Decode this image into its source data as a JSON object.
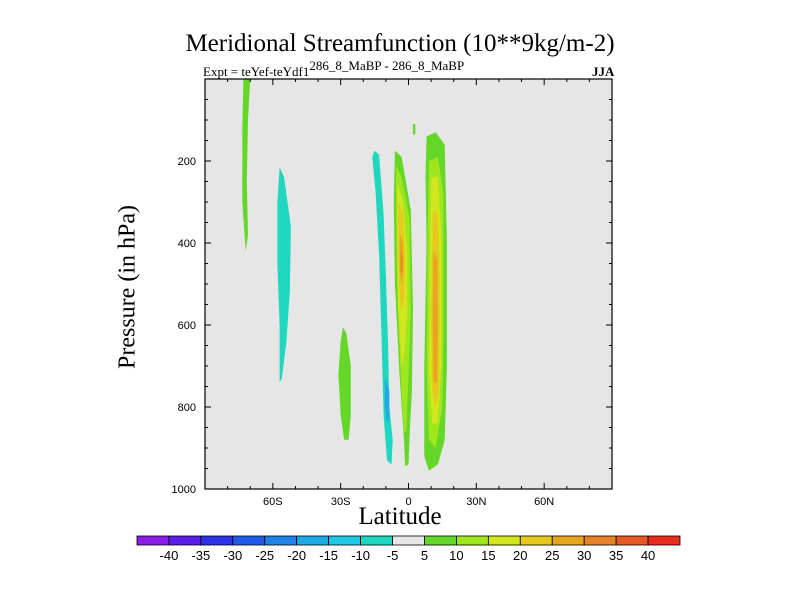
{
  "chart_data": {
    "type": "contour",
    "title": "Meridional Streamfunction (10**9kg/m-2)",
    "left_label": "Expt = teYef-teYdf1",
    "left_label_sup": "286_8_MaBP - 286_8_MaBP",
    "right_label": "JJA",
    "xlabel": "Latitude",
    "ylabel": "Pressure (in hPa)",
    "xlim": [
      -90,
      90
    ],
    "ylim": [
      0,
      1000
    ],
    "y_inverted": true,
    "background_color": "#e6e6e6",
    "x_ticks": [
      {
        "value": -60,
        "label": "60S"
      },
      {
        "value": -30,
        "label": "30S"
      },
      {
        "value": 0,
        "label": "0"
      },
      {
        "value": 30,
        "label": "30N"
      },
      {
        "value": 60,
        "label": "60N"
      }
    ],
    "y_ticks": [
      {
        "value": 200,
        "label": "200"
      },
      {
        "value": 400,
        "label": "400"
      },
      {
        "value": 600,
        "label": "600"
      },
      {
        "value": 800,
        "label": "800"
      },
      {
        "value": 1000,
        "label": "1000"
      }
    ],
    "colorbar": {
      "labels": [
        "-40",
        "-35",
        "-30",
        "-25",
        "-20",
        "-15",
        "-10",
        "-5",
        "5",
        "10",
        "15",
        "20",
        "25",
        "30",
        "35",
        "40"
      ],
      "colors": [
        "#8a1ee6",
        "#5a1ee6",
        "#2d32e6",
        "#1e5ae6",
        "#1e82e6",
        "#1eaae6",
        "#1ec8e6",
        "#1ed7be",
        "#e6e6e6",
        "#64d728",
        "#a0e61e",
        "#d2e61e",
        "#e6c81e",
        "#e6a51e",
        "#e68228",
        "#e65a23",
        "#e62d1e"
      ]
    },
    "regions": [
      {
        "name": "green-strip-70s",
        "color": "#64d728",
        "points": [
          [
            -73,
            0
          ],
          [
            -70,
            0
          ],
          [
            -71,
            100
          ],
          [
            -71.5,
            250
          ],
          [
            -71,
            380
          ],
          [
            -72,
            420
          ],
          [
            -73.5,
            300
          ],
          [
            -73.5,
            120
          ]
        ]
      },
      {
        "name": "cyan-band-55s",
        "color": "#1ed7be",
        "points": [
          [
            -57,
            215
          ],
          [
            -55,
            240
          ],
          [
            -52,
            360
          ],
          [
            -52.5,
            520
          ],
          [
            -54,
            640
          ],
          [
            -56,
            730
          ],
          [
            -57,
            740
          ],
          [
            -57,
            600
          ],
          [
            -58,
            450
          ],
          [
            -58,
            300
          ]
        ]
      },
      {
        "name": "green-blob-30s",
        "color": "#64d728",
        "points": [
          [
            -29,
            605
          ],
          [
            -27.5,
            620
          ],
          [
            -25.5,
            700
          ],
          [
            -25.5,
            820
          ],
          [
            -26.5,
            880
          ],
          [
            -28.5,
            880
          ],
          [
            -30,
            820
          ],
          [
            -31,
            720
          ],
          [
            -30,
            640
          ]
        ]
      },
      {
        "name": "cyan-band-15s",
        "color": "#1ed7be",
        "points": [
          [
            -15,
            175
          ],
          [
            -13,
            185
          ],
          [
            -11,
            330
          ],
          [
            -10,
            480
          ],
          [
            -9,
            650
          ],
          [
            -8.5,
            800
          ],
          [
            -7,
            880
          ],
          [
            -7.5,
            940
          ],
          [
            -9.5,
            930
          ],
          [
            -11,
            820
          ],
          [
            -12,
            620
          ],
          [
            -13,
            430
          ],
          [
            -14.5,
            280
          ],
          [
            -16,
            190
          ]
        ]
      },
      {
        "name": "blue-core-10s",
        "color": "#1eaae6",
        "points": [
          [
            -10.5,
            730
          ],
          [
            -8.5,
            760
          ],
          [
            -8.5,
            830
          ],
          [
            -9.5,
            840
          ],
          [
            -10.5,
            800
          ]
        ]
      },
      {
        "name": "green-band-0",
        "color": "#64d728",
        "points": [
          [
            -6,
            175
          ],
          [
            -3,
            190
          ],
          [
            1,
            320
          ],
          [
            2,
            560
          ],
          [
            1.5,
            760
          ],
          [
            0.5,
            870
          ],
          [
            0,
            940
          ],
          [
            -1.5,
            945
          ],
          [
            -2,
            880
          ],
          [
            -4,
            720
          ],
          [
            -6,
            500
          ],
          [
            -6.5,
            300
          ]
        ]
      },
      {
        "name": "lime-band-0",
        "color": "#a0e61e",
        "points": [
          [
            -5.5,
            210
          ],
          [
            -3,
            240
          ],
          [
            0.5,
            340
          ],
          [
            1,
            560
          ],
          [
            0,
            720
          ],
          [
            -1,
            860
          ],
          [
            -2,
            860
          ],
          [
            -3.5,
            720
          ],
          [
            -5,
            520
          ],
          [
            -5.5,
            330
          ]
        ]
      },
      {
        "name": "yellow-band-0",
        "color": "#d2e61e",
        "points": [
          [
            -5,
            250
          ],
          [
            -2.5,
            300
          ],
          [
            -0.5,
            420
          ],
          [
            -0.5,
            560
          ],
          [
            -2,
            680
          ],
          [
            -3,
            700
          ],
          [
            -4.5,
            560
          ],
          [
            -5,
            400
          ]
        ]
      },
      {
        "name": "gold-band-0",
        "color": "#e6c81e",
        "points": [
          [
            -4.5,
            300
          ],
          [
            -2.5,
            330
          ],
          [
            -1.5,
            430
          ],
          [
            -2,
            540
          ],
          [
            -3.5,
            560
          ],
          [
            -4.5,
            460
          ]
        ]
      },
      {
        "name": "orange-core-0",
        "color": "#e6a51e",
        "points": [
          [
            -3.8,
            380
          ],
          [
            -2.5,
            400
          ],
          [
            -2.3,
            470
          ],
          [
            -3,
            500
          ],
          [
            -3.8,
            470
          ]
        ]
      },
      {
        "name": "red-core-0",
        "color": "#e68228",
        "points": [
          [
            -3.4,
            420
          ],
          [
            -2.7,
            430
          ],
          [
            -2.7,
            470
          ],
          [
            -3.3,
            470
          ]
        ]
      },
      {
        "name": "green-band-12n",
        "color": "#64d728",
        "points": [
          [
            8,
            140
          ],
          [
            12,
            130
          ],
          [
            16,
            160
          ],
          [
            17,
            400
          ],
          [
            17,
            700
          ],
          [
            16,
            880
          ],
          [
            13,
            940
          ],
          [
            9,
            955
          ],
          [
            7,
            920
          ],
          [
            7,
            700
          ],
          [
            8,
            400
          ],
          [
            7.5,
            240
          ]
        ]
      },
      {
        "name": "lime-band-12n",
        "color": "#a0e61e",
        "points": [
          [
            9,
            200
          ],
          [
            13,
            190
          ],
          [
            15.5,
            280
          ],
          [
            15.5,
            600
          ],
          [
            15,
            800
          ],
          [
            12,
            900
          ],
          [
            9,
            880
          ],
          [
            8,
            700
          ],
          [
            8.5,
            400
          ]
        ]
      },
      {
        "name": "yellow-band-12n",
        "color": "#d2e61e",
        "points": [
          [
            10,
            240
          ],
          [
            13,
            240
          ],
          [
            14.5,
            380
          ],
          [
            14.5,
            700
          ],
          [
            13,
            840
          ],
          [
            10.5,
            840
          ],
          [
            9,
            720
          ],
          [
            9.5,
            400
          ]
        ]
      },
      {
        "name": "gold-band-12n",
        "color": "#e6c81e",
        "points": [
          [
            10.8,
            320
          ],
          [
            13,
            330
          ],
          [
            13.8,
            480
          ],
          [
            13.5,
            760
          ],
          [
            12,
            800
          ],
          [
            10.5,
            760
          ],
          [
            10,
            560
          ]
        ]
      },
      {
        "name": "orange-core-12n",
        "color": "#e6a51e",
        "points": [
          [
            11,
            420
          ],
          [
            12.8,
            440
          ],
          [
            13,
            600
          ],
          [
            12.6,
            740
          ],
          [
            11.2,
            740
          ],
          [
            10.7,
            600
          ]
        ]
      },
      {
        "name": "green-speck-3n",
        "color": "#64d728",
        "points": [
          [
            2,
            110
          ],
          [
            3,
            110
          ],
          [
            3,
            135
          ],
          [
            2,
            135
          ]
        ]
      }
    ]
  }
}
